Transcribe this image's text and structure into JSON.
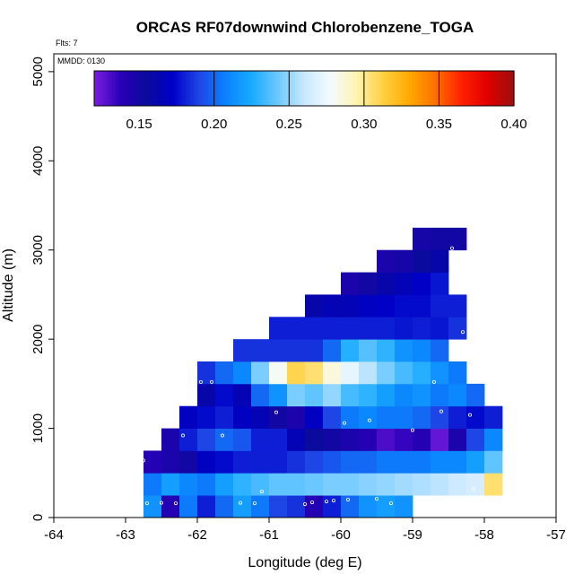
{
  "chart_data": {
    "type": "heatmap",
    "title": "ORCAS RF07downwind Chlorobenzene_TOGA",
    "flights_note": "Flts: 7",
    "date_note": "MMDD: 0130",
    "xlabel": "Longitude (deg E)",
    "ylabel": "Altitude (m)",
    "xlim": [
      -64,
      -57
    ],
    "ylim": [
      0,
      5200
    ],
    "x_ticks": [
      -64,
      -63,
      -62,
      -61,
      -60,
      -59,
      -58,
      -57
    ],
    "x_tick_labels": [
      "-64",
      "-63",
      "-62",
      "-61",
      "-60",
      "-59",
      "-58",
      "-57"
    ],
    "y_ticks": [
      0,
      1000,
      2000,
      3000,
      4000,
      5000
    ],
    "y_tick_labels": [
      "0",
      "1000",
      "2000",
      "3000",
      "4000",
      "5000"
    ],
    "colorbar": {
      "range": [
        0.12,
        0.4
      ],
      "ticks": [
        0.15,
        0.2,
        0.25,
        0.3,
        0.35,
        0.4
      ],
      "tick_labels": [
        "0.15",
        "0.20",
        "0.25",
        "0.30",
        "0.35",
        "0.40"
      ],
      "dividers": [
        0.2,
        0.25,
        0.3,
        0.35
      ],
      "colors": [
        "#7a1fe0",
        "#2a00b8",
        "#0a0a9c",
        "#0000c8",
        "#1e46e6",
        "#0a82ff",
        "#18aaff",
        "#6cc8ff",
        "#c8e8ff",
        "#f4fbff",
        "#fff4b0",
        "#ffd040",
        "#ffaa00",
        "#ff7000",
        "#ff2000",
        "#e00000",
        "#9a1010"
      ]
    },
    "cell_width_deg": 0.25,
    "cell_height_m": 250,
    "cells": [
      {
        "x": -62.75,
        "y": 0,
        "v": 0.215
      },
      {
        "x": -62.5,
        "y": 0,
        "v": 0.14
      },
      {
        "x": -62.25,
        "y": 0,
        "v": 0.205
      },
      {
        "x": -62.0,
        "y": 0,
        "v": 0.18
      },
      {
        "x": -61.75,
        "y": 0,
        "v": 0.2
      },
      {
        "x": -61.5,
        "y": 0,
        "v": 0.22
      },
      {
        "x": -61.25,
        "y": 0,
        "v": 0.205
      },
      {
        "x": -61.0,
        "y": 0,
        "v": 0.19
      },
      {
        "x": -60.75,
        "y": 0,
        "v": 0.185
      },
      {
        "x": -60.5,
        "y": 0,
        "v": 0.14
      },
      {
        "x": -60.25,
        "y": 0,
        "v": 0.18
      },
      {
        "x": -60.0,
        "y": 0,
        "v": 0.2
      },
      {
        "x": -59.75,
        "y": 0,
        "v": 0.215
      },
      {
        "x": -59.5,
        "y": 0,
        "v": 0.22
      },
      {
        "x": -59.25,
        "y": 0,
        "v": 0.215
      },
      {
        "x": -62.75,
        "y": 250,
        "v": 0.205
      },
      {
        "x": -62.5,
        "y": 250,
        "v": 0.22
      },
      {
        "x": -62.25,
        "y": 250,
        "v": 0.21
      },
      {
        "x": -62.0,
        "y": 250,
        "v": 0.205
      },
      {
        "x": -61.75,
        "y": 250,
        "v": 0.22
      },
      {
        "x": -61.5,
        "y": 250,
        "v": 0.23
      },
      {
        "x": -61.25,
        "y": 250,
        "v": 0.235
      },
      {
        "x": -61.0,
        "y": 250,
        "v": 0.24
      },
      {
        "x": -60.75,
        "y": 250,
        "v": 0.24
      },
      {
        "x": -60.5,
        "y": 250,
        "v": 0.242
      },
      {
        "x": -60.25,
        "y": 250,
        "v": 0.245
      },
      {
        "x": -60.0,
        "y": 250,
        "v": 0.245
      },
      {
        "x": -59.75,
        "y": 250,
        "v": 0.248
      },
      {
        "x": -59.5,
        "y": 250,
        "v": 0.25
      },
      {
        "x": -59.25,
        "y": 250,
        "v": 0.253
      },
      {
        "x": -59.0,
        "y": 250,
        "v": 0.255
      },
      {
        "x": -58.75,
        "y": 250,
        "v": 0.258
      },
      {
        "x": -58.5,
        "y": 250,
        "v": 0.262
      },
      {
        "x": -58.25,
        "y": 250,
        "v": 0.265
      },
      {
        "x": -58.0,
        "y": 250,
        "v": 0.305
      },
      {
        "x": -62.75,
        "y": 500,
        "v": 0.14
      },
      {
        "x": -62.5,
        "y": 500,
        "v": 0.145
      },
      {
        "x": -62.25,
        "y": 500,
        "v": 0.15
      },
      {
        "x": -62.0,
        "y": 500,
        "v": 0.17
      },
      {
        "x": -61.75,
        "y": 500,
        "v": 0.175
      },
      {
        "x": -61.5,
        "y": 500,
        "v": 0.18
      },
      {
        "x": -61.25,
        "y": 500,
        "v": 0.18
      },
      {
        "x": -61.0,
        "y": 500,
        "v": 0.18
      },
      {
        "x": -60.75,
        "y": 500,
        "v": 0.185
      },
      {
        "x": -60.5,
        "y": 500,
        "v": 0.19
      },
      {
        "x": -60.25,
        "y": 500,
        "v": 0.195
      },
      {
        "x": -60.0,
        "y": 500,
        "v": 0.2
      },
      {
        "x": -59.75,
        "y": 500,
        "v": 0.2
      },
      {
        "x": -59.5,
        "y": 500,
        "v": 0.205
      },
      {
        "x": -59.25,
        "y": 500,
        "v": 0.205
      },
      {
        "x": -59.0,
        "y": 500,
        "v": 0.205
      },
      {
        "x": -58.75,
        "y": 500,
        "v": 0.21
      },
      {
        "x": -58.5,
        "y": 500,
        "v": 0.21
      },
      {
        "x": -58.25,
        "y": 500,
        "v": 0.22
      },
      {
        "x": -58.0,
        "y": 500,
        "v": 0.24
      },
      {
        "x": -62.5,
        "y": 750,
        "v": 0.145
      },
      {
        "x": -62.25,
        "y": 750,
        "v": 0.18
      },
      {
        "x": -62.0,
        "y": 750,
        "v": 0.19
      },
      {
        "x": -61.75,
        "y": 750,
        "v": 0.2
      },
      {
        "x": -61.5,
        "y": 750,
        "v": 0.195
      },
      {
        "x": -61.25,
        "y": 750,
        "v": 0.18
      },
      {
        "x": -61.0,
        "y": 750,
        "v": 0.18
      },
      {
        "x": -60.75,
        "y": 750,
        "v": 0.165
      },
      {
        "x": -60.5,
        "y": 750,
        "v": 0.155
      },
      {
        "x": -60.25,
        "y": 750,
        "v": 0.15
      },
      {
        "x": -60.0,
        "y": 750,
        "v": 0.145
      },
      {
        "x": -59.75,
        "y": 750,
        "v": 0.14
      },
      {
        "x": -59.5,
        "y": 750,
        "v": 0.13
      },
      {
        "x": -59.25,
        "y": 750,
        "v": 0.135
      },
      {
        "x": -59.0,
        "y": 750,
        "v": 0.14
      },
      {
        "x": -58.75,
        "y": 750,
        "v": 0.125
      },
      {
        "x": -58.5,
        "y": 750,
        "v": 0.145
      },
      {
        "x": -58.25,
        "y": 750,
        "v": 0.19
      },
      {
        "x": -58.0,
        "y": 750,
        "v": 0.21
      },
      {
        "x": -62.25,
        "y": 1000,
        "v": 0.17
      },
      {
        "x": -62.0,
        "y": 1000,
        "v": 0.175
      },
      {
        "x": -61.75,
        "y": 1000,
        "v": 0.18
      },
      {
        "x": -61.5,
        "y": 1000,
        "v": 0.17
      },
      {
        "x": -61.25,
        "y": 1000,
        "v": 0.165
      },
      {
        "x": -61.0,
        "y": 1000,
        "v": 0.15
      },
      {
        "x": -60.75,
        "y": 1000,
        "v": 0.145
      },
      {
        "x": -60.5,
        "y": 1000,
        "v": 0.17
      },
      {
        "x": -60.25,
        "y": 1000,
        "v": 0.19
      },
      {
        "x": -60.0,
        "y": 1000,
        "v": 0.205
      },
      {
        "x": -59.75,
        "y": 1000,
        "v": 0.21
      },
      {
        "x": -59.5,
        "y": 1000,
        "v": 0.205
      },
      {
        "x": -59.25,
        "y": 1000,
        "v": 0.205
      },
      {
        "x": -59.0,
        "y": 1000,
        "v": 0.2
      },
      {
        "x": -58.75,
        "y": 1000,
        "v": 0.19
      },
      {
        "x": -58.5,
        "y": 1000,
        "v": 0.18
      },
      {
        "x": -58.25,
        "y": 1000,
        "v": 0.175
      },
      {
        "x": -58.0,
        "y": 1000,
        "v": 0.18
      },
      {
        "x": -62.0,
        "y": 1250,
        "v": 0.16
      },
      {
        "x": -61.75,
        "y": 1250,
        "v": 0.175
      },
      {
        "x": -61.5,
        "y": 1250,
        "v": 0.165
      },
      {
        "x": -61.25,
        "y": 1250,
        "v": 0.2
      },
      {
        "x": -61.0,
        "y": 1250,
        "v": 0.215
      },
      {
        "x": -60.75,
        "y": 1250,
        "v": 0.245
      },
      {
        "x": -60.5,
        "y": 1250,
        "v": 0.24
      },
      {
        "x": -60.25,
        "y": 1250,
        "v": 0.25
      },
      {
        "x": -60.0,
        "y": 1250,
        "v": 0.235
      },
      {
        "x": -59.75,
        "y": 1250,
        "v": 0.23
      },
      {
        "x": -59.5,
        "y": 1250,
        "v": 0.22
      },
      {
        "x": -59.25,
        "y": 1250,
        "v": 0.21
      },
      {
        "x": -59.0,
        "y": 1250,
        "v": 0.215
      },
      {
        "x": -58.75,
        "y": 1250,
        "v": 0.205
      },
      {
        "x": -58.5,
        "y": 1250,
        "v": 0.21
      },
      {
        "x": -58.25,
        "y": 1250,
        "v": 0.2
      },
      {
        "x": -62.0,
        "y": 1500,
        "v": 0.185
      },
      {
        "x": -61.75,
        "y": 1500,
        "v": 0.2
      },
      {
        "x": -61.5,
        "y": 1500,
        "v": 0.21
      },
      {
        "x": -61.25,
        "y": 1500,
        "v": 0.245
      },
      {
        "x": -61.0,
        "y": 1500,
        "v": 0.28
      },
      {
        "x": -60.75,
        "y": 1500,
        "v": 0.31
      },
      {
        "x": -60.5,
        "y": 1500,
        "v": 0.305
      },
      {
        "x": -60.25,
        "y": 1500,
        "v": 0.285
      },
      {
        "x": -60.0,
        "y": 1500,
        "v": 0.272
      },
      {
        "x": -59.75,
        "y": 1500,
        "v": 0.258
      },
      {
        "x": -59.5,
        "y": 1500,
        "v": 0.245
      },
      {
        "x": -59.25,
        "y": 1500,
        "v": 0.235
      },
      {
        "x": -59.0,
        "y": 1500,
        "v": 0.228
      },
      {
        "x": -58.75,
        "y": 1500,
        "v": 0.215
      },
      {
        "x": -58.5,
        "y": 1500,
        "v": 0.205
      },
      {
        "x": -61.5,
        "y": 1750,
        "v": 0.185
      },
      {
        "x": -61.25,
        "y": 1750,
        "v": 0.185
      },
      {
        "x": -61.0,
        "y": 1750,
        "v": 0.185
      },
      {
        "x": -60.75,
        "y": 1750,
        "v": 0.185
      },
      {
        "x": -60.5,
        "y": 1750,
        "v": 0.185
      },
      {
        "x": -60.25,
        "y": 1750,
        "v": 0.2
      },
      {
        "x": -60.0,
        "y": 1750,
        "v": 0.228
      },
      {
        "x": -59.75,
        "y": 1750,
        "v": 0.238
      },
      {
        "x": -59.5,
        "y": 1750,
        "v": 0.23
      },
      {
        "x": -59.25,
        "y": 1750,
        "v": 0.215
      },
      {
        "x": -59.0,
        "y": 1750,
        "v": 0.21
      },
      {
        "x": -58.75,
        "y": 1750,
        "v": 0.2
      },
      {
        "x": -61.0,
        "y": 2000,
        "v": 0.18
      },
      {
        "x": -60.75,
        "y": 2000,
        "v": 0.18
      },
      {
        "x": -60.5,
        "y": 2000,
        "v": 0.18
      },
      {
        "x": -60.25,
        "y": 2000,
        "v": 0.18
      },
      {
        "x": -60.0,
        "y": 2000,
        "v": 0.18
      },
      {
        "x": -59.75,
        "y": 2000,
        "v": 0.18
      },
      {
        "x": -59.5,
        "y": 2000,
        "v": 0.18
      },
      {
        "x": -59.25,
        "y": 2000,
        "v": 0.178
      },
      {
        "x": -59.0,
        "y": 2000,
        "v": 0.18
      },
      {
        "x": -58.75,
        "y": 2000,
        "v": 0.178
      },
      {
        "x": -58.5,
        "y": 2000,
        "v": 0.185
      },
      {
        "x": -60.5,
        "y": 2250,
        "v": 0.16
      },
      {
        "x": -60.25,
        "y": 2250,
        "v": 0.165
      },
      {
        "x": -60.0,
        "y": 2250,
        "v": 0.165
      },
      {
        "x": -59.75,
        "y": 2250,
        "v": 0.17
      },
      {
        "x": -59.5,
        "y": 2250,
        "v": 0.172
      },
      {
        "x": -59.25,
        "y": 2250,
        "v": 0.175
      },
      {
        "x": -59.0,
        "y": 2250,
        "v": 0.175
      },
      {
        "x": -58.75,
        "y": 2250,
        "v": 0.18
      },
      {
        "x": -58.5,
        "y": 2250,
        "v": 0.18
      },
      {
        "x": -60.0,
        "y": 2500,
        "v": 0.145
      },
      {
        "x": -59.75,
        "y": 2500,
        "v": 0.15
      },
      {
        "x": -59.5,
        "y": 2500,
        "v": 0.16
      },
      {
        "x": -59.25,
        "y": 2500,
        "v": 0.165
      },
      {
        "x": -59.0,
        "y": 2500,
        "v": 0.172
      },
      {
        "x": -58.75,
        "y": 2500,
        "v": 0.178
      },
      {
        "x": -59.5,
        "y": 2750,
        "v": 0.145
      },
      {
        "x": -59.25,
        "y": 2750,
        "v": 0.148
      },
      {
        "x": -59.0,
        "y": 2750,
        "v": 0.155
      },
      {
        "x": -58.75,
        "y": 2750,
        "v": 0.16
      },
      {
        "x": -59.0,
        "y": 3000,
        "v": 0.148
      },
      {
        "x": -58.75,
        "y": 3000,
        "v": 0.15
      },
      {
        "x": -58.5,
        "y": 3000,
        "v": 0.15
      }
    ],
    "points": [
      {
        "x": -62.7,
        "y": 160
      },
      {
        "x": -62.5,
        "y": 165
      },
      {
        "x": -62.3,
        "y": 160
      },
      {
        "x": -61.4,
        "y": 165
      },
      {
        "x": -61.2,
        "y": 160
      },
      {
        "x": -60.4,
        "y": 170
      },
      {
        "x": -60.2,
        "y": 180
      },
      {
        "x": -60.1,
        "y": 190
      },
      {
        "x": -59.9,
        "y": 200
      },
      {
        "x": -59.5,
        "y": 210
      },
      {
        "x": -59.3,
        "y": 160
      },
      {
        "x": -60.5,
        "y": 150
      },
      {
        "x": -61.1,
        "y": 290
      },
      {
        "x": -58.15,
        "y": 320
      },
      {
        "x": -62.75,
        "y": 640
      },
      {
        "x": -62.2,
        "y": 920
      },
      {
        "x": -61.65,
        "y": 920
      },
      {
        "x": -59.0,
        "y": 980
      },
      {
        "x": -59.95,
        "y": 1060
      },
      {
        "x": -59.6,
        "y": 1090
      },
      {
        "x": -60.9,
        "y": 1180
      },
      {
        "x": -58.6,
        "y": 1190
      },
      {
        "x": -58.2,
        "y": 1150
      },
      {
        "x": -61.95,
        "y": 1520
      },
      {
        "x": -61.8,
        "y": 1520
      },
      {
        "x": -58.7,
        "y": 1520
      },
      {
        "x": -58.3,
        "y": 2080
      },
      {
        "x": -58.45,
        "y": 3020
      }
    ]
  }
}
